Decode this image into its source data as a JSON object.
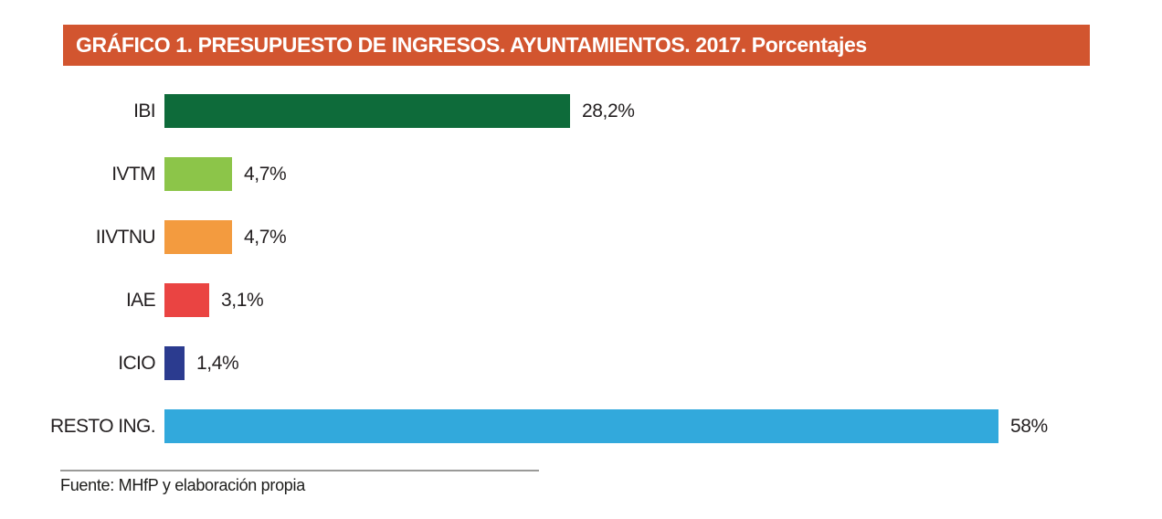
{
  "header": {
    "title": "GRÁFICO 1. PRESUPUESTO DE INGRESOS. AYUNTAMIENTOS. 2017. Porcentajes",
    "background_color": "#d2552f",
    "text_color": "#ffffff"
  },
  "chart_data": {
    "type": "bar",
    "orientation": "horizontal",
    "title": "GRÁFICO 1. PRESUPUESTO DE INGRESOS. AYUNTAMIENTOS. 2017. Porcentajes",
    "categories": [
      "IBI",
      "IVTM",
      "IIVTNU",
      "IAE",
      "ICIO",
      "RESTO ING."
    ],
    "values": [
      28.2,
      4.7,
      4.7,
      3.1,
      1.4,
      58
    ],
    "value_labels": [
      "28,2%",
      "4,7%",
      "4,7%",
      "3,1%",
      "1,4%",
      "58%"
    ],
    "bar_colors": [
      "#0e6b3a",
      "#8cc549",
      "#f39b3f",
      "#ea4442",
      "#2b3b8f",
      "#32a9dc"
    ],
    "xlabel": "",
    "ylabel": "",
    "xlim": [
      0,
      60
    ],
    "grid": false,
    "legend": false,
    "data_labels_position": "outside-end"
  },
  "footer": {
    "source": "Fuente: MHfP y elaboración propia"
  }
}
